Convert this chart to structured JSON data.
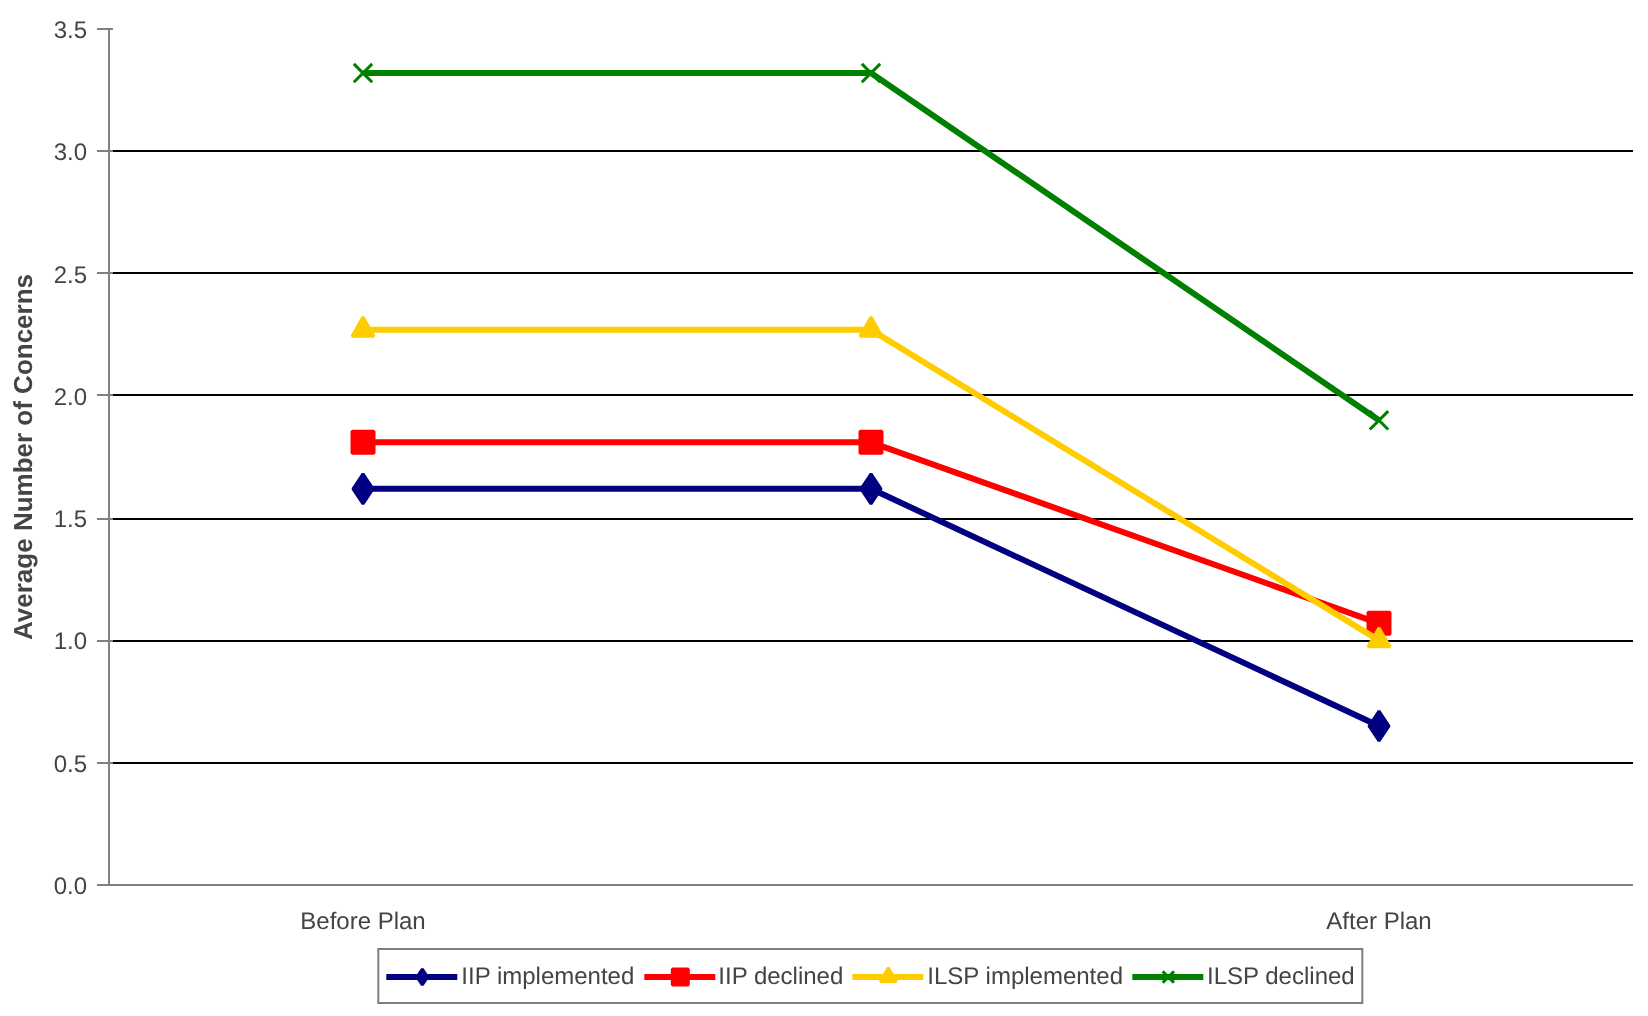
{
  "chart_data": {
    "type": "line",
    "ylabel": "Average Number of Concerns",
    "categories": [
      "Before Plan",
      null,
      "After Plan"
    ],
    "ylim": [
      0,
      3.5
    ],
    "yticks": [
      {
        "value": 0,
        "label": "0.0"
      },
      {
        "value": 0.5,
        "label": "0.5"
      },
      {
        "value": 1,
        "label": "1.0"
      },
      {
        "value": 1.5,
        "label": "1.5"
      },
      {
        "value": 2,
        "label": "2.0"
      },
      {
        "value": 2.5,
        "label": "2.5"
      },
      {
        "value": 3,
        "label": "3.0"
      },
      {
        "value": 3.5,
        "label": "3.5"
      }
    ],
    "grid": "y",
    "legend": "bottom",
    "line_style": "solid",
    "series": [
      {
        "name": "IIP implemented",
        "color": "#000080",
        "marker": "diamond",
        "values": [
          1.62,
          1.62,
          0.65
        ]
      },
      {
        "name": "IIP declined",
        "color": "#ff0000",
        "marker": "square",
        "values": [
          1.81,
          1.81,
          1.07
        ]
      },
      {
        "name": "ILSP implemented",
        "color": "#ffcc00",
        "marker": "triangle",
        "values": [
          2.27,
          2.27,
          1.0
        ]
      },
      {
        "name": "ILSP declined",
        "color": "#008000",
        "marker": "cross",
        "values": [
          3.32,
          3.32,
          1.9
        ]
      }
    ]
  }
}
